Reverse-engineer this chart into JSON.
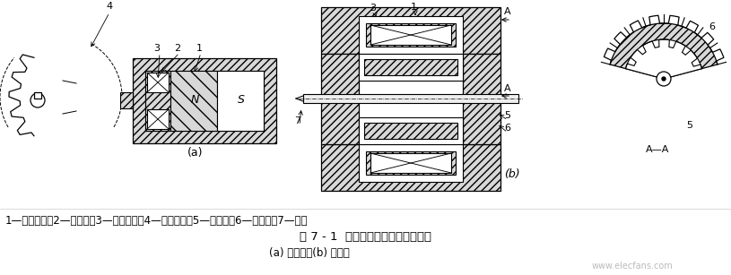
{
  "bg_color": "#ffffff",
  "fig_width": 8.15,
  "fig_height": 3.07,
  "dpi": 100,
  "legend_text": "1—永久磁铁；2—软磁铁；3—感应线圈；4—测量齿轮；5—内齿轮；6—外齿轮；7—转轴",
  "title_text": "图 7 - 1  变磁通式磁电传感器结构图",
  "subtitle_text": "(a) 开磁路；(b) 闭磁路",
  "watermark": "www.elecfans.com",
  "hatch_color": "#888888",
  "text_fontsize": 8.5,
  "title_fontsize": 9.5
}
